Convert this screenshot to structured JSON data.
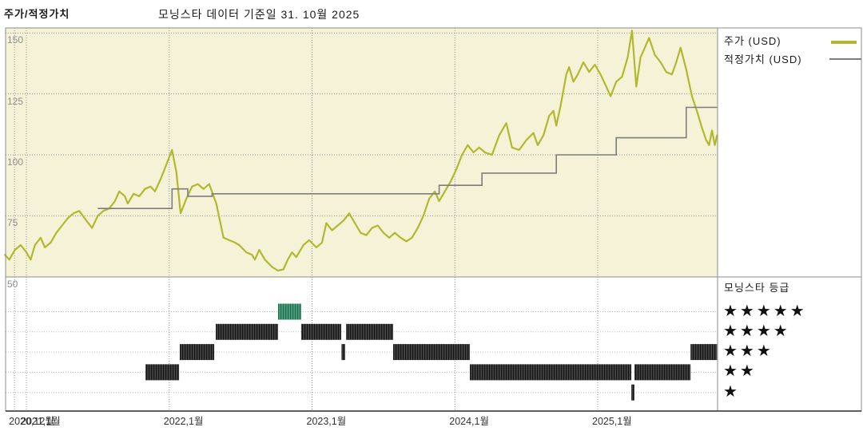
{
  "header": {
    "title": "주가/적정가치",
    "subtitle": "모닝스타 데이터 기준일 31. 10월 2025"
  },
  "legend": {
    "price_label": "주가 (USD)",
    "fair_value_label": "적정가치 (USD)"
  },
  "rating_legend": {
    "title": "모닝스타 등급",
    "star_char": "★",
    "rows": [
      5,
      4,
      3,
      2,
      1
    ]
  },
  "colors": {
    "price": "#b2b82e",
    "fair_value": "#7d7d7d",
    "plot_bg": "#f6f2d7",
    "grid": "#8f8f8f",
    "row_grid": "#bdbdbd",
    "bar": "#424242",
    "bar_stripe": "#141414",
    "teal": "#4d9d7d",
    "teal_stripe": "#1f6b4e",
    "border": "#8c8c8c",
    "axis_line": "#2a2a2a",
    "panel_bg": "#ffffff"
  },
  "chart_data": {
    "type": "line",
    "title": "주가/적정가치",
    "as_of_label": "모닝스타 데이터 기준일 31. 10월 2025",
    "currency": "USD",
    "ylim": [
      50,
      155
    ],
    "y_ticks": [
      150,
      125,
      100,
      75,
      50
    ],
    "x_ticks": [
      {
        "t": 2020.917,
        "label": "2020,12월"
      },
      {
        "t": 2021.0,
        "label": "2021,1월"
      },
      {
        "t": 2022.0,
        "label": "2022,1월"
      },
      {
        "t": 2023.0,
        "label": "2023,1월"
      },
      {
        "t": 2024.0,
        "label": "2024,1월"
      },
      {
        "t": 2025.0,
        "label": "2025,1월"
      }
    ],
    "legend_position": "right",
    "grid": true,
    "series": [
      {
        "name": "주가 (USD)",
        "color_key": "price",
        "style": "line",
        "points": [
          [
            2020.85,
            59
          ],
          [
            2020.88,
            57
          ],
          [
            2020.92,
            61
          ],
          [
            2020.96,
            63
          ],
          [
            2021.0,
            60
          ],
          [
            2021.03,
            57
          ],
          [
            2021.06,
            63
          ],
          [
            2021.1,
            66
          ],
          [
            2021.13,
            62
          ],
          [
            2021.17,
            64
          ],
          [
            2021.21,
            68
          ],
          [
            2021.25,
            71
          ],
          [
            2021.29,
            74
          ],
          [
            2021.33,
            76
          ],
          [
            2021.37,
            77
          ],
          [
            2021.42,
            73
          ],
          [
            2021.46,
            70
          ],
          [
            2021.5,
            75
          ],
          [
            2021.54,
            77
          ],
          [
            2021.58,
            78
          ],
          [
            2021.62,
            81
          ],
          [
            2021.65,
            85
          ],
          [
            2021.69,
            83
          ],
          [
            2021.71,
            80
          ],
          [
            2021.75,
            84
          ],
          [
            2021.79,
            83
          ],
          [
            2021.83,
            86
          ],
          [
            2021.87,
            87
          ],
          [
            2021.9,
            85
          ],
          [
            2021.94,
            90
          ],
          [
            2021.98,
            96
          ],
          [
            2022.02,
            102
          ],
          [
            2022.05,
            93
          ],
          [
            2022.08,
            76
          ],
          [
            2022.12,
            82
          ],
          [
            2022.16,
            87
          ],
          [
            2022.2,
            88
          ],
          [
            2022.24,
            86
          ],
          [
            2022.28,
            88
          ],
          [
            2022.33,
            80
          ],
          [
            2022.38,
            66
          ],
          [
            2022.42,
            65
          ],
          [
            2022.46,
            64
          ],
          [
            2022.49,
            63
          ],
          [
            2022.54,
            60
          ],
          [
            2022.58,
            59
          ],
          [
            2022.6,
            57
          ],
          [
            2022.63,
            61
          ],
          [
            2022.67,
            57
          ],
          [
            2022.72,
            54
          ],
          [
            2022.76,
            52.5
          ],
          [
            2022.8,
            53
          ],
          [
            2022.83,
            57
          ],
          [
            2022.86,
            60
          ],
          [
            2022.89,
            58
          ],
          [
            2022.94,
            63
          ],
          [
            2022.98,
            65
          ],
          [
            2023.03,
            62
          ],
          [
            2023.07,
            64
          ],
          [
            2023.1,
            72
          ],
          [
            2023.14,
            69
          ],
          [
            2023.18,
            71
          ],
          [
            2023.22,
            73
          ],
          [
            2023.26,
            76
          ],
          [
            2023.3,
            72
          ],
          [
            2023.34,
            68
          ],
          [
            2023.38,
            67
          ],
          [
            2023.42,
            70
          ],
          [
            2023.46,
            71
          ],
          [
            2023.5,
            68
          ],
          [
            2023.54,
            66
          ],
          [
            2023.58,
            68
          ],
          [
            2023.62,
            66
          ],
          [
            2023.66,
            64.5
          ],
          [
            2023.7,
            66
          ],
          [
            2023.74,
            70
          ],
          [
            2023.78,
            75
          ],
          [
            2023.82,
            82
          ],
          [
            2023.86,
            85
          ],
          [
            2023.89,
            81
          ],
          [
            2023.93,
            85
          ],
          [
            2023.97,
            89
          ],
          [
            2024.01,
            94
          ],
          [
            2024.05,
            100
          ],
          [
            2024.09,
            104
          ],
          [
            2024.13,
            101
          ],
          [
            2024.17,
            103
          ],
          [
            2024.21,
            101
          ],
          [
            2024.26,
            100
          ],
          [
            2024.31,
            108
          ],
          [
            2024.36,
            113
          ],
          [
            2024.4,
            103
          ],
          [
            2024.45,
            102
          ],
          [
            2024.5,
            106
          ],
          [
            2024.55,
            109
          ],
          [
            2024.58,
            104
          ],
          [
            2024.62,
            108
          ],
          [
            2024.66,
            116
          ],
          [
            2024.69,
            118
          ],
          [
            2024.71,
            112
          ],
          [
            2024.74,
            120
          ],
          [
            2024.78,
            133
          ],
          [
            2024.8,
            136
          ],
          [
            2024.83,
            130
          ],
          [
            2024.86,
            133
          ],
          [
            2024.9,
            138
          ],
          [
            2024.94,
            134
          ],
          [
            2024.98,
            137
          ],
          [
            2025.02,
            133
          ],
          [
            2025.06,
            128
          ],
          [
            2025.09,
            124
          ],
          [
            2025.13,
            130
          ],
          [
            2025.17,
            132
          ],
          [
            2025.21,
            140
          ],
          [
            2025.24,
            151
          ],
          [
            2025.27,
            128
          ],
          [
            2025.3,
            140
          ],
          [
            2025.33,
            144
          ],
          [
            2025.36,
            148
          ],
          [
            2025.4,
            141
          ],
          [
            2025.44,
            138
          ],
          [
            2025.48,
            134
          ],
          [
            2025.52,
            133
          ],
          [
            2025.55,
            138
          ],
          [
            2025.58,
            144
          ],
          [
            2025.62,
            135
          ],
          [
            2025.66,
            124
          ],
          [
            2025.7,
            117
          ],
          [
            2025.73,
            111
          ],
          [
            2025.76,
            106
          ],
          [
            2025.78,
            104
          ],
          [
            2025.8,
            110
          ],
          [
            2025.82,
            104
          ],
          [
            2025.835,
            108
          ]
        ]
      },
      {
        "name": "적정가치 (USD)",
        "color_key": "fair_value",
        "style": "step",
        "points": [
          [
            2021.5,
            78
          ],
          [
            2022.02,
            86
          ],
          [
            2022.13,
            83
          ],
          [
            2022.3,
            84
          ],
          [
            2023.89,
            87.5
          ],
          [
            2024.19,
            92.5
          ],
          [
            2024.71,
            100
          ],
          [
            2025.13,
            107
          ],
          [
            2025.62,
            119.5
          ],
          [
            2025.835,
            119.5
          ]
        ]
      }
    ],
    "rating_timeline": {
      "rows": [
        5,
        4,
        3,
        2,
        1
      ],
      "segments": [
        {
          "stars": 2,
          "start": 2021.834,
          "end": 2022.069,
          "highlight": false
        },
        {
          "stars": 3,
          "start": 2022.074,
          "end": 2022.315,
          "highlight": false
        },
        {
          "stars": 4,
          "start": 2022.326,
          "end": 2022.762,
          "highlight": false
        },
        {
          "stars": 5,
          "start": 2022.762,
          "end": 2022.924,
          "highlight": true
        },
        {
          "stars": 4,
          "start": 2022.924,
          "end": 2023.204,
          "highlight": false
        },
        {
          "stars": 3,
          "start": 2023.206,
          "end": 2023.232,
          "highlight": false
        },
        {
          "stars": 4,
          "start": 2023.238,
          "end": 2023.568,
          "highlight": false
        },
        {
          "stars": 3,
          "start": 2023.568,
          "end": 2024.105,
          "highlight": false
        },
        {
          "stars": 2,
          "start": 2024.105,
          "end": 2025.235,
          "highlight": false
        },
        {
          "stars": 1,
          "start": 2025.235,
          "end": 2025.257,
          "highlight": false
        },
        {
          "stars": 2,
          "start": 2025.257,
          "end": 2025.65,
          "highlight": false
        },
        {
          "stars": 3,
          "start": 2025.65,
          "end": 2025.835,
          "highlight": false
        }
      ]
    }
  }
}
